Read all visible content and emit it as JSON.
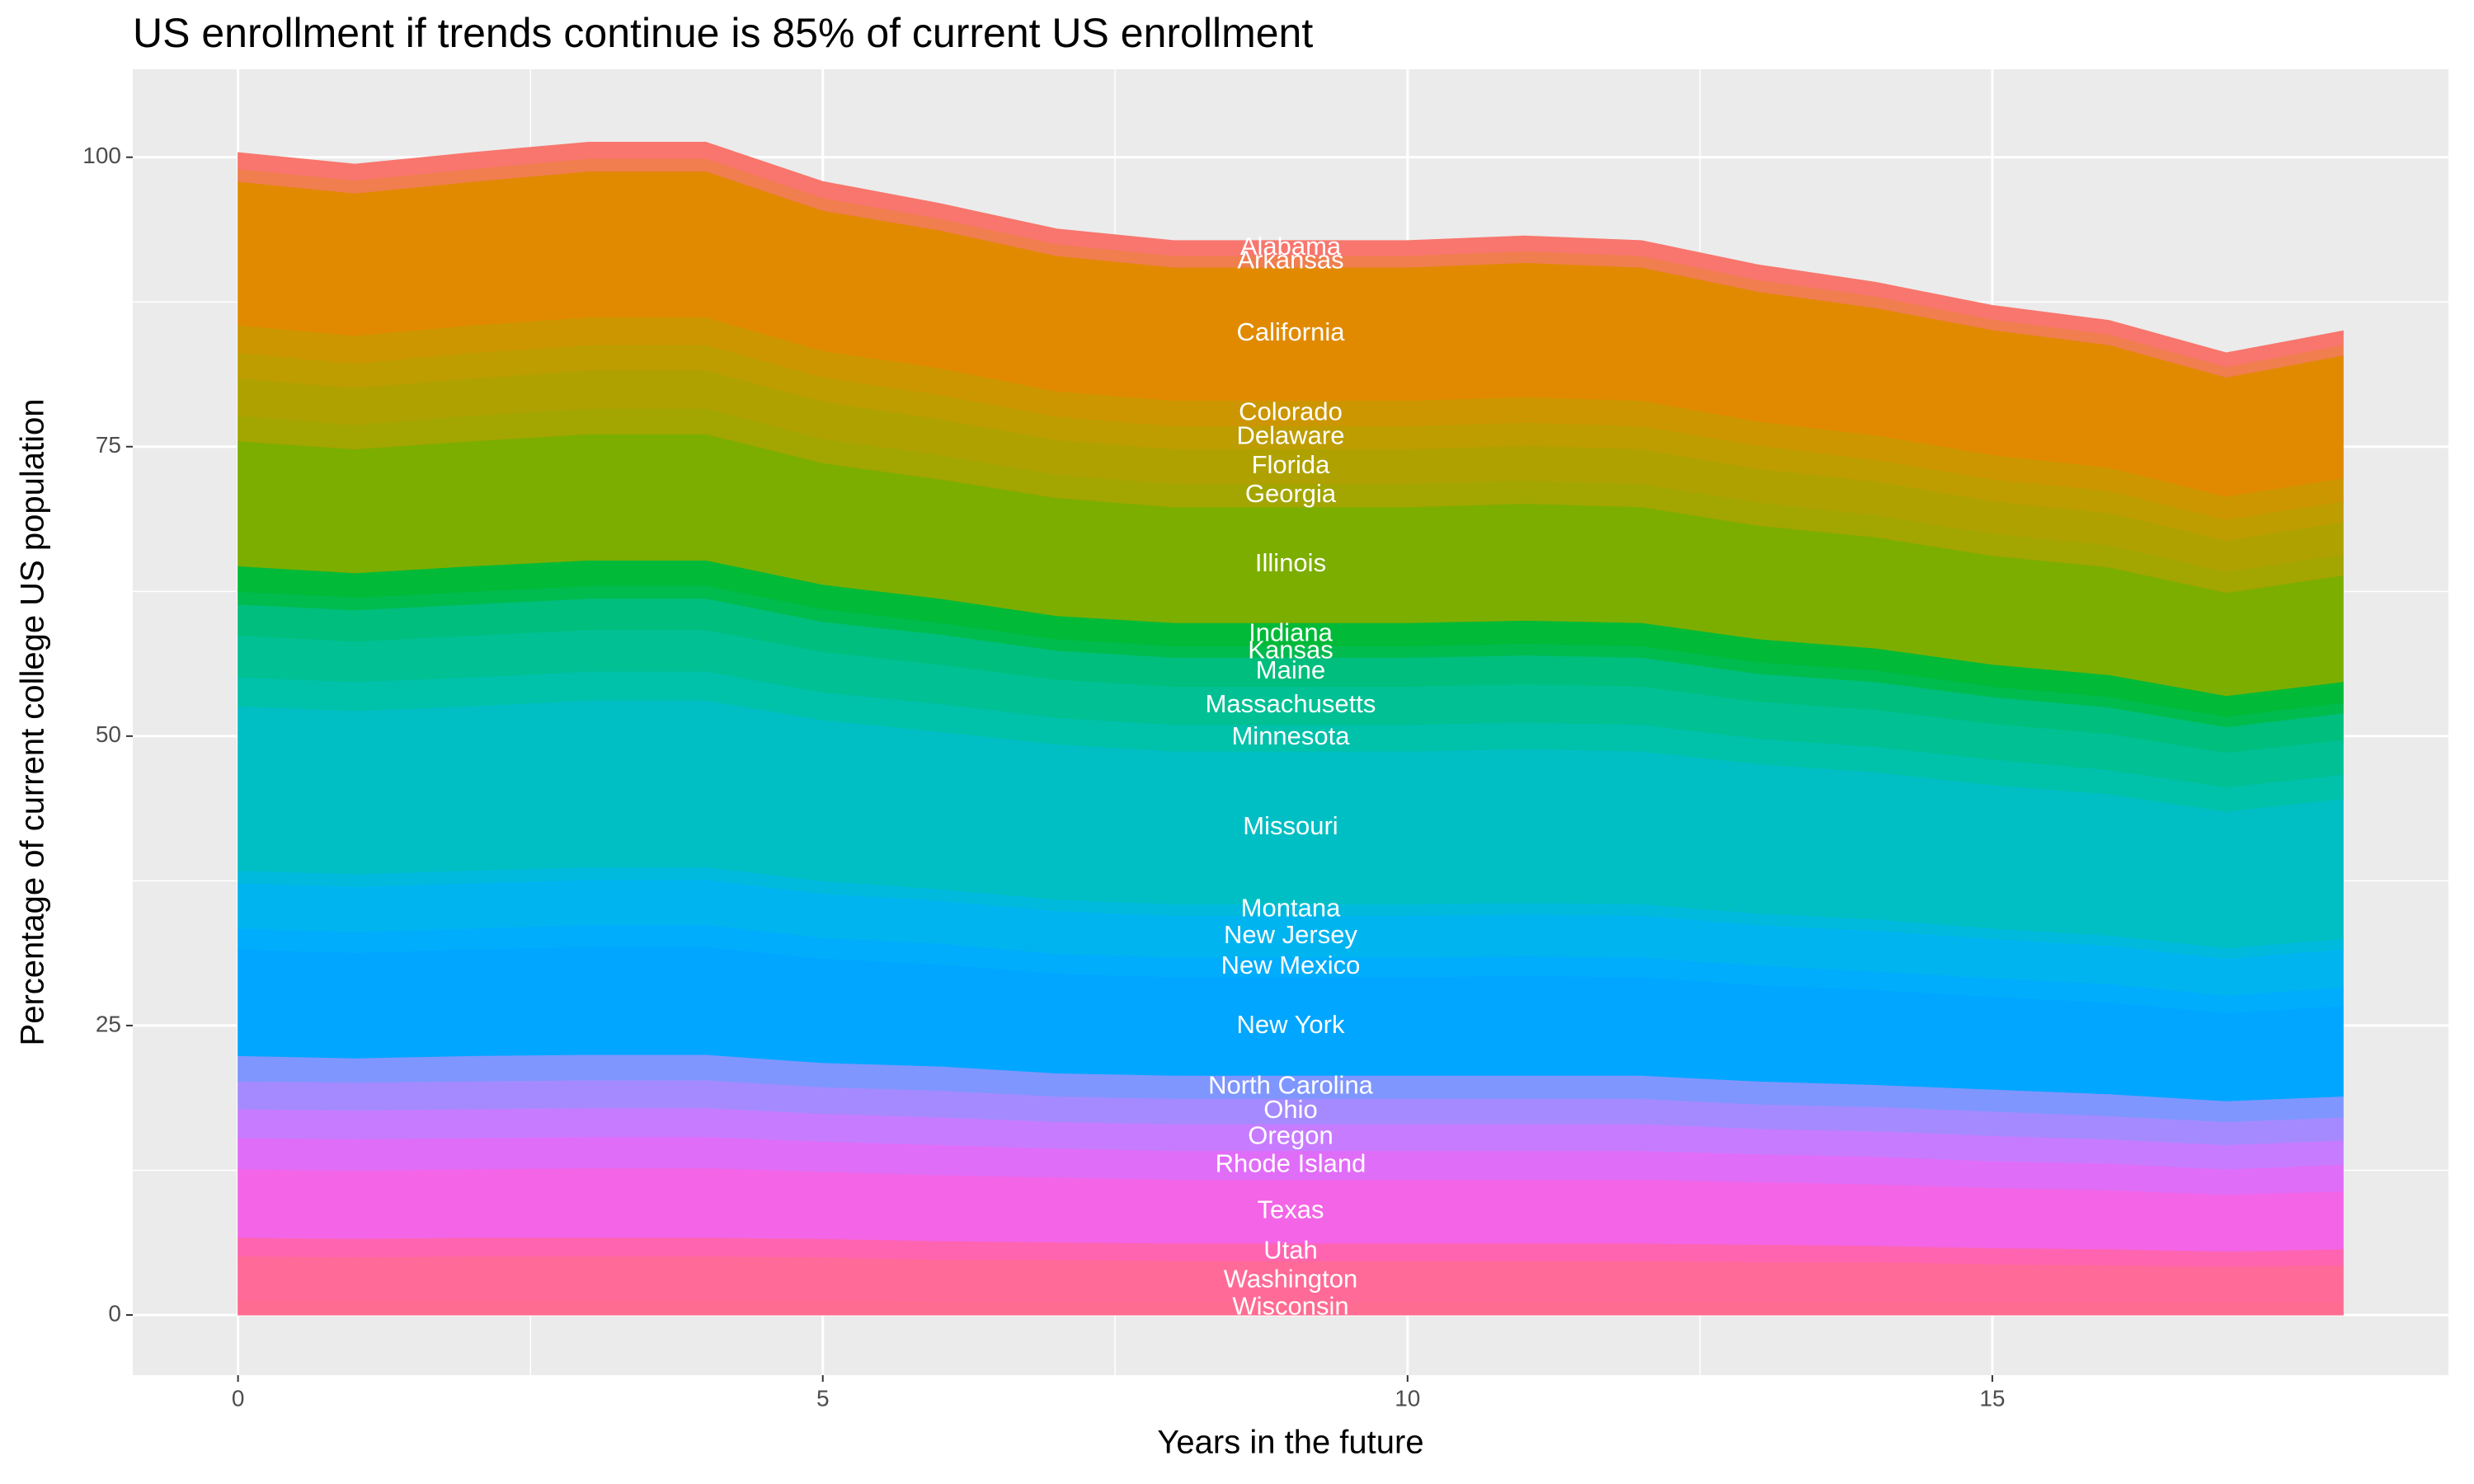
{
  "chart_data": {
    "type": "stacked_area",
    "title": "US enrollment if trends continue is 85% of current US enrollment",
    "x_label": "Years in the future",
    "y_label": "Percentage of current college US population",
    "x": [
      0,
      1,
      2,
      3,
      4,
      5,
      6,
      7,
      8,
      9,
      10,
      11,
      12,
      13,
      14,
      15,
      16,
      17,
      18
    ],
    "xlim": [
      -0.9,
      18.9
    ],
    "xticks": [
      0,
      5,
      10,
      15
    ],
    "ylim": [
      -5.2,
      107.6
    ],
    "yticks": [
      0,
      25,
      50,
      75,
      100
    ],
    "grid": true,
    "series": [
      {
        "name": "Wisconsin",
        "color": "#FF6C91",
        "values": [
          1.3,
          1.3,
          1.3,
          1.3,
          1.3,
          1.3,
          1.2,
          1.2,
          1.2,
          1.2,
          1.2,
          1.2,
          1.2,
          1.2,
          1.2,
          1.1,
          1.1,
          1.1,
          1.1
        ]
      },
      {
        "name": "Washington",
        "color": "#FF6A98",
        "values": [
          3.8,
          3.7,
          3.8,
          3.8,
          3.8,
          3.7,
          3.6,
          3.6,
          3.5,
          3.5,
          3.5,
          3.5,
          3.5,
          3.4,
          3.4,
          3.3,
          3.2,
          3.1,
          3.2
        ]
      },
      {
        "name": "Utah",
        "color": "#FF64B0",
        "values": [
          1.6,
          1.6,
          1.6,
          1.6,
          1.6,
          1.6,
          1.6,
          1.5,
          1.5,
          1.5,
          1.5,
          1.5,
          1.5,
          1.5,
          1.4,
          1.4,
          1.4,
          1.3,
          1.4
        ]
      },
      {
        "name": "Texas",
        "color": "#F365E6",
        "values": [
          5.9,
          5.9,
          5.9,
          6.0,
          6.0,
          5.8,
          5.7,
          5.6,
          5.5,
          5.5,
          5.5,
          5.5,
          5.5,
          5.4,
          5.3,
          5.2,
          5.1,
          4.9,
          5.0
        ]
      },
      {
        "name": "Rhode Island",
        "color": "#E06DF7",
        "values": [
          2.7,
          2.7,
          2.7,
          2.7,
          2.7,
          2.6,
          2.6,
          2.5,
          2.5,
          2.5,
          2.5,
          2.5,
          2.5,
          2.4,
          2.4,
          2.3,
          2.3,
          2.2,
          2.3
        ]
      },
      {
        "name": "Oregon",
        "color": "#C77CFF",
        "values": [
          2.5,
          2.5,
          2.5,
          2.5,
          2.5,
          2.4,
          2.4,
          2.3,
          2.3,
          2.3,
          2.3,
          2.3,
          2.3,
          2.2,
          2.2,
          2.2,
          2.1,
          2.1,
          2.1
        ]
      },
      {
        "name": "Ohio",
        "color": "#A58AFF",
        "values": [
          2.4,
          2.4,
          2.4,
          2.4,
          2.4,
          2.3,
          2.3,
          2.2,
          2.2,
          2.2,
          2.2,
          2.2,
          2.2,
          2.1,
          2.1,
          2.1,
          2.0,
          2.0,
          2.0
        ]
      },
      {
        "name": "North Carolina",
        "color": "#7F96FF",
        "values": [
          2.2,
          2.1,
          2.2,
          2.2,
          2.2,
          2.1,
          2.1,
          2.0,
          2.0,
          2.0,
          2.0,
          2.0,
          2.0,
          2.0,
          1.9,
          1.9,
          1.9,
          1.8,
          1.8
        ]
      },
      {
        "name": "New York",
        "color": "#00A6FF",
        "values": [
          9.2,
          9.1,
          9.2,
          9.3,
          9.3,
          9.0,
          8.8,
          8.6,
          8.5,
          8.5,
          8.5,
          8.6,
          8.5,
          8.3,
          8.2,
          8.0,
          7.9,
          7.6,
          7.8
        ]
      },
      {
        "name": "New Mexico",
        "color": "#00ACFC",
        "values": [
          1.8,
          1.8,
          1.8,
          1.9,
          1.9,
          1.8,
          1.8,
          1.7,
          1.7,
          1.7,
          1.7,
          1.7,
          1.7,
          1.7,
          1.6,
          1.6,
          1.6,
          1.5,
          1.6
        ]
      },
      {
        "name": "New Jersey",
        "color": "#00B4F0",
        "values": [
          3.9,
          3.9,
          3.9,
          3.9,
          3.9,
          3.8,
          3.7,
          3.7,
          3.6,
          3.6,
          3.6,
          3.6,
          3.6,
          3.5,
          3.5,
          3.4,
          3.3,
          3.2,
          3.3
        ]
      },
      {
        "name": "Montana",
        "color": "#00BADE",
        "values": [
          1.1,
          1.1,
          1.1,
          1.1,
          1.1,
          1.1,
          1.0,
          1.0,
          1.0,
          1.0,
          1.0,
          1.0,
          1.0,
          1.0,
          1.0,
          0.9,
          0.9,
          0.9,
          0.9
        ]
      },
      {
        "name": "Missouri",
        "color": "#00BFC4",
        "values": [
          14.2,
          14.1,
          14.2,
          14.4,
          14.4,
          13.9,
          13.6,
          13.4,
          13.2,
          13.2,
          13.2,
          13.3,
          13.2,
          12.9,
          12.7,
          12.4,
          12.2,
          11.8,
          12.1
        ]
      },
      {
        "name": "Minnesota",
        "color": "#00C1AA",
        "values": [
          2.5,
          2.5,
          2.5,
          2.5,
          2.5,
          2.4,
          2.4,
          2.3,
          2.3,
          2.3,
          2.3,
          2.3,
          2.3,
          2.2,
          2.2,
          2.2,
          2.1,
          2.1,
          2.1
        ]
      },
      {
        "name": "Massachusetts",
        "color": "#00C094",
        "values": [
          3.6,
          3.5,
          3.6,
          3.6,
          3.6,
          3.5,
          3.4,
          3.3,
          3.3,
          3.3,
          3.3,
          3.3,
          3.3,
          3.2,
          3.2,
          3.1,
          3.1,
          3.0,
          3.0
        ]
      },
      {
        "name": "Maine",
        "color": "#00BE7D",
        "values": [
          2.7,
          2.7,
          2.7,
          2.7,
          2.7,
          2.6,
          2.6,
          2.5,
          2.5,
          2.5,
          2.5,
          2.5,
          2.5,
          2.4,
          2.4,
          2.3,
          2.3,
          2.2,
          2.3
        ]
      },
      {
        "name": "Kansas",
        "color": "#00BB4E",
        "values": [
          1.1,
          1.1,
          1.1,
          1.1,
          1.1,
          1.1,
          1.0,
          1.0,
          1.0,
          1.0,
          1.0,
          1.0,
          1.0,
          1.0,
          1.0,
          0.9,
          0.9,
          0.9,
          0.9
        ]
      },
      {
        "name": "Indiana",
        "color": "#00BA38",
        "values": [
          2.2,
          2.1,
          2.2,
          2.2,
          2.2,
          2.1,
          2.1,
          2.0,
          2.0,
          2.0,
          2.0,
          2.0,
          2.0,
          2.0,
          1.9,
          1.9,
          1.9,
          1.8,
          1.8
        ]
      },
      {
        "name": "Illinois",
        "color": "#7CAE00",
        "values": [
          10.8,
          10.7,
          10.8,
          10.9,
          10.9,
          10.5,
          10.3,
          10.2,
          10.0,
          10.0,
          10.0,
          10.1,
          10.0,
          9.8,
          9.6,
          9.4,
          9.3,
          8.9,
          9.2
        ]
      },
      {
        "name": "Georgia",
        "color": "#A3A500",
        "values": [
          2.2,
          2.1,
          2.2,
          2.2,
          2.2,
          2.1,
          2.1,
          2.0,
          2.0,
          2.0,
          2.0,
          2.0,
          2.0,
          2.0,
          1.9,
          1.9,
          1.9,
          1.8,
          1.8
        ]
      },
      {
        "name": "Florida",
        "color": "#AFA200",
        "values": [
          3.2,
          3.2,
          3.2,
          3.3,
          3.3,
          3.2,
          3.1,
          3.0,
          3.0,
          3.0,
          3.0,
          3.0,
          3.0,
          2.9,
          2.9,
          2.8,
          2.8,
          2.7,
          2.8
        ]
      },
      {
        "name": "Delaware",
        "color": "#BD9D00",
        "values": [
          2.2,
          2.1,
          2.2,
          2.2,
          2.2,
          2.1,
          2.1,
          2.0,
          2.0,
          2.0,
          2.0,
          2.0,
          2.0,
          2.0,
          1.9,
          1.9,
          1.9,
          1.8,
          1.8
        ]
      },
      {
        "name": "Colorado",
        "color": "#CC9600",
        "values": [
          2.4,
          2.4,
          2.4,
          2.4,
          2.4,
          2.3,
          2.3,
          2.2,
          2.2,
          2.2,
          2.2,
          2.2,
          2.2,
          2.1,
          2.1,
          2.1,
          2.0,
          2.0,
          2.0
        ]
      },
      {
        "name": "California",
        "color": "#E18A00",
        "values": [
          12.4,
          12.3,
          12.4,
          12.6,
          12.6,
          12.1,
          11.9,
          11.7,
          11.5,
          11.5,
          11.5,
          11.6,
          11.5,
          11.2,
          11.0,
          10.8,
          10.6,
          10.3,
          10.6
        ]
      },
      {
        "name": "Arkansas",
        "color": "#F07E4E",
        "values": [
          1.1,
          1.1,
          1.1,
          1.1,
          1.1,
          1.1,
          1.0,
          1.0,
          1.0,
          1.0,
          1.0,
          1.0,
          1.0,
          1.0,
          1.0,
          0.9,
          0.9,
          0.9,
          0.9
        ]
      },
      {
        "name": "Alabama",
        "color": "#F8766D",
        "values": [
          1.4,
          1.4,
          1.4,
          1.4,
          1.4,
          1.4,
          1.3,
          1.3,
          1.3,
          1.3,
          1.3,
          1.3,
          1.3,
          1.3,
          1.2,
          1.2,
          1.2,
          1.2,
          1.2
        ]
      }
    ]
  }
}
